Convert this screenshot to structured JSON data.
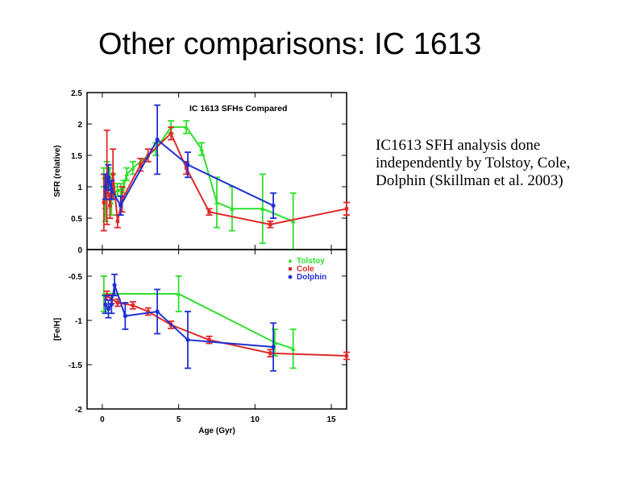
{
  "slide": {
    "title": "Other comparisons: IC 1613",
    "body": "IC1613 SFH analysis done independently by Tolstoy, Cole, Dolphin (Skillman et al. 2003)"
  },
  "chart_data": {
    "type": "line",
    "title": "IC 1613 SFHs Compared",
    "xlabel": "Age (Gyr)",
    "xlim": [
      -1.0,
      16.0
    ],
    "xticks": [
      "0",
      "5",
      "10",
      "15"
    ],
    "xtick_values": [
      0,
      5,
      10,
      15
    ],
    "colors": {
      "Tolstoy": "#2ee02e",
      "Cole": "#e02828",
      "Dolphin": "#1f2fd0"
    },
    "legend": {
      "position": "top-right",
      "entries": [
        "Tolstoy",
        "Cole",
        "Dolphin"
      ]
    },
    "panels": [
      {
        "name": "sfr",
        "ylabel": "SFR (relative)",
        "ylim": [
          0,
          2.5
        ],
        "yticks": [
          "0",
          "0.5",
          "1",
          "1.5",
          "2",
          "2.5"
        ],
        "ytick_values": [
          0,
          0.5,
          1,
          1.5,
          2,
          2.5
        ],
        "series": [
          {
            "name": "Tolstoy",
            "x": [
              0.1,
              0.2,
              0.3,
              0.4,
              0.5,
              0.6,
              0.7,
              0.8,
              1.0,
              1.2,
              1.4,
              1.6,
              2.0,
              3.5,
              4.5,
              5.5,
              6.5,
              7.5,
              8.5,
              10.5,
              12.5
            ],
            "y": [
              1.15,
              0.55,
              1.2,
              1.0,
              1.15,
              0.75,
              1.05,
              0.9,
              0.95,
              0.95,
              1.0,
              1.2,
              1.3,
              1.6,
              1.95,
              1.95,
              1.6,
              0.75,
              0.65,
              0.65,
              0.45
            ],
            "yerr": [
              0.15,
              0.1,
              0.2,
              0.15,
              0.15,
              0.2,
              0.15,
              0.1,
              0.1,
              0.1,
              0.1,
              0.1,
              0.1,
              0.1,
              0.1,
              0.1,
              0.1,
              0.4,
              0.35,
              0.55,
              0.45
            ]
          },
          {
            "name": "Cole",
            "x": [
              0.1,
              0.3,
              0.5,
              0.7,
              1.0,
              1.3,
              2.5,
              3.0,
              4.5,
              5.5,
              7.0,
              11.0,
              16.0
            ],
            "y": [
              0.75,
              1.15,
              0.7,
              1.2,
              0.45,
              0.8,
              1.35,
              1.5,
              1.85,
              1.3,
              0.6,
              0.4,
              0.65
            ],
            "yerr": [
              0.45,
              0.75,
              0.2,
              0.4,
              0.1,
              0.2,
              0.1,
              0.1,
              0.1,
              0.1,
              0.05,
              0.05,
              0.1
            ]
          },
          {
            "name": "Dolphin",
            "x": [
              0.2,
              0.4,
              0.6,
              1.2,
              3.6,
              5.6,
              11.2
            ],
            "y": [
              1.0,
              1.15,
              0.95,
              0.7,
              1.75,
              1.35,
              0.7
            ],
            "yerr": [
              0.2,
              0.2,
              0.15,
              0.15,
              0.55,
              0.2,
              0.2
            ]
          }
        ]
      },
      {
        "name": "feh",
        "ylabel": "[Fe/H]",
        "ylim": [
          -2.0,
          -0.2
        ],
        "yticks": [
          "-0.5",
          "-1",
          "-1.5",
          "-2"
        ],
        "ytick_values": [
          -0.5,
          -1.0,
          -1.5,
          -2.0
        ],
        "series": [
          {
            "name": "Tolstoy",
            "x": [
              0.1,
              5.0,
              11.3,
              12.5
            ],
            "y": [
              -0.7,
              -0.7,
              -1.25,
              -1.32
            ],
            "yerr": [
              0.2,
              0.2,
              0.15,
              0.22
            ]
          },
          {
            "name": "Cole",
            "x": [
              0.3,
              0.6,
              1.0,
              2.0,
              3.0,
              4.5,
              7.0,
              11.0,
              16.0
            ],
            "y": [
              -0.72,
              -0.76,
              -0.8,
              -0.83,
              -0.9,
              -1.05,
              -1.22,
              -1.37,
              -1.4
            ],
            "yerr": [
              0.05,
              0.05,
              0.04,
              0.04,
              0.04,
              0.04,
              0.04,
              0.04,
              0.04
            ]
          },
          {
            "name": "Dolphin",
            "x": [
              0.2,
              0.4,
              0.6,
              0.8,
              1.5,
              3.6,
              5.6,
              11.2
            ],
            "y": [
              -0.82,
              -0.87,
              -0.82,
              -0.6,
              -0.95,
              -0.9,
              -1.22,
              -1.3
            ],
            "yerr": [
              0.1,
              0.1,
              0.1,
              0.12,
              0.15,
              0.25,
              0.32,
              0.27
            ]
          }
        ]
      }
    ]
  }
}
